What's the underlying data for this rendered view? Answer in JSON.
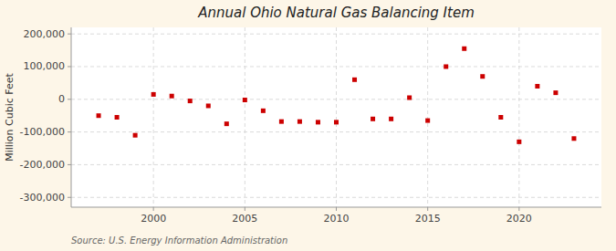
{
  "chart_data": {
    "type": "scatter",
    "title": "Annual Ohio Natural Gas Balancing Item",
    "y_label": "Million Cubic Feet",
    "source": "Source: U.S. Energy Information Administration",
    "color": "#cc0000",
    "marker": "square",
    "grid": true,
    "x": [
      1997,
      1998,
      1999,
      2000,
      2001,
      2002,
      2003,
      2004,
      2005,
      2006,
      2007,
      2008,
      2009,
      2010,
      2011,
      2012,
      2013,
      2014,
      2015,
      2016,
      2017,
      2018,
      2019,
      2020,
      2021,
      2022,
      2023
    ],
    "values": [
      -50000,
      -55000,
      -110000,
      15000,
      10000,
      -5000,
      -20000,
      -75000,
      -2000,
      -35000,
      -68000,
      -68000,
      -70000,
      -70000,
      60000,
      -60000,
      -60000,
      5000,
      -65000,
      100000,
      155000,
      70000,
      -55000,
      -130000,
      40000,
      20000,
      -120000
    ],
    "xlim": [
      1995.5,
      2024.5
    ],
    "ylim": [
      -330000,
      220000
    ],
    "xticks": [
      2000,
      2005,
      2010,
      2015,
      2020
    ],
    "yticks": [
      {
        "value": -300000,
        "label": "-300,000"
      },
      {
        "value": -200000,
        "label": "-200,000"
      },
      {
        "value": -100000,
        "label": "-100,000"
      },
      0,
      {
        "value": 100000,
        "label": "100,000"
      },
      {
        "value": 200000,
        "label": "200,000"
      }
    ]
  }
}
